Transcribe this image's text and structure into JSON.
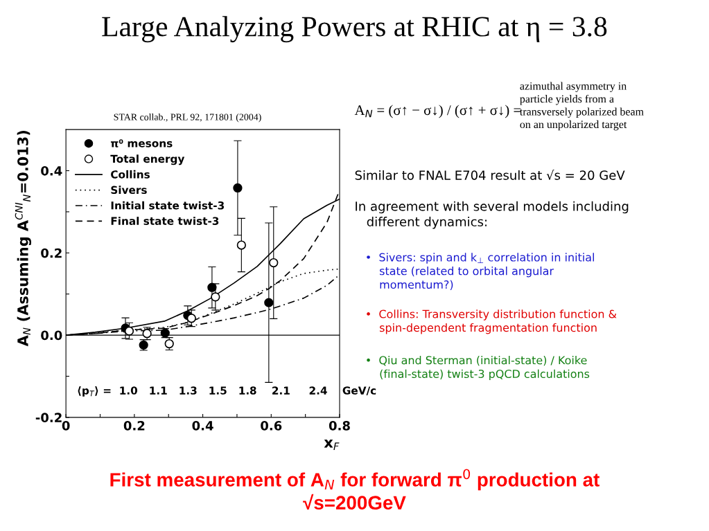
{
  "chart_data": {
    "type": "scatter",
    "title": "Large Analyzing Powers at RHIC at η = 3.8",
    "xlabel": "x$_{F}$",
    "ylabel": "A$_{N}$ (Assuming A$^{CNI}$$_{N}$=0.013)",
    "xlim": [
      0,
      0.8
    ],
    "ylim": [
      -0.2,
      0.5
    ],
    "xticks": [
      0,
      0.2,
      0.4,
      0.6,
      0.8,
      {
        "value": 0.1,
        "label": null
      },
      {
        "value": 0.3,
        "label": null
      },
      {
        "value": 0.5,
        "label": null
      },
      {
        "value": 0.7,
        "label": null
      }
    ],
    "yticks": [
      -0.2,
      {
        "value": 0,
        "label": "0.0"
      },
      0.2,
      0.4,
      {
        "value": -0.1,
        "label": null
      },
      {
        "value": 0.1,
        "label": null
      },
      {
        "value": 0.3,
        "label": null
      }
    ],
    "ref_lines": [
      {
        "axis": "y",
        "value": 0,
        "color": "#000000"
      }
    ],
    "legend": "top left",
    "grid": false,
    "series": [
      {
        "name": "π⁰ mesons",
        "marker": "circle",
        "color": "#000000",
        "x": [
          0.174,
          0.227,
          0.29,
          0.356,
          0.427,
          0.502,
          0.593
        ],
        "values": [
          0.017,
          -0.024,
          0.005,
          0.048,
          0.116,
          0.358,
          0.079
        ],
        "errors": [
          0.025,
          0.013,
          0.011,
          0.023,
          0.05,
          0.115,
          0.194
        ]
      },
      {
        "name": "Total energy",
        "marker": "circle",
        "color": "#000000",
        "x": [
          0.185,
          0.237,
          0.302,
          0.367,
          0.437,
          0.513,
          0.607
        ],
        "values": [
          0.01,
          0.004,
          -0.021,
          0.041,
          0.093,
          0.219,
          0.176
        ],
        "errors": [
          0.02,
          0.015,
          0.015,
          0.02,
          0.032,
          0.065,
          0.136
        ]
      },
      {
        "name": "Collins",
        "type": "line",
        "line_style": "solid",
        "color": "#000000",
        "x": [
          0,
          0.085,
          0.174,
          0.288,
          0.356,
          0.424,
          0.492,
          0.559,
          0.593,
          0.627,
          0.695,
          0.763,
          0.8
        ],
        "values": [
          0,
          0.007,
          0.017,
          0.034,
          0.059,
          0.09,
          0.127,
          0.167,
          0.195,
          0.223,
          0.283,
          0.316,
          0.331
        ]
      },
      {
        "name": "Sivers",
        "type": "line",
        "line_style": "dotted",
        "color": "#000000",
        "x": [
          0,
          0.085,
          0.174,
          0.288,
          0.356,
          0.424,
          0.492,
          0.559,
          0.593,
          0.627,
          0.695,
          0.763,
          0.8
        ],
        "values": [
          0,
          0.005,
          0.012,
          0.019,
          0.031,
          0.053,
          0.076,
          0.102,
          0.116,
          0.13,
          0.15,
          0.158,
          0.161
        ]
      },
      {
        "name": "Initial state twist-3",
        "type": "line",
        "line_style": "dashdot",
        "color": "#000000",
        "x": [
          0,
          0.085,
          0.174,
          0.288,
          0.356,
          0.424,
          0.492,
          0.559,
          0.593,
          0.627,
          0.695,
          0.763,
          0.8
        ],
        "values": [
          0,
          0.004,
          0.01,
          0.012,
          0.021,
          0.031,
          0.042,
          0.055,
          0.062,
          0.071,
          0.09,
          0.121,
          0.147
        ]
      },
      {
        "name": "Final state twist-3",
        "type": "line",
        "line_style": "dashed",
        "color": "#000000",
        "x": [
          0,
          0.085,
          0.174,
          0.288,
          0.356,
          0.424,
          0.492,
          0.559,
          0.593,
          0.627,
          0.695,
          0.763,
          0.8
        ],
        "values": [
          0,
          0.004,
          0.012,
          0.017,
          0.031,
          0.051,
          0.072,
          0.096,
          0.113,
          0.133,
          0.186,
          0.274,
          0.353
        ]
      }
    ],
    "annotations": [
      "STAR collab., PRL 92, 171801 (2004)",
      "A$_{N}$ = (σ↑ − σ↓) / (σ↑ + σ↓) =",
      "azimuthal asymmetry in\nparticle yields from a\ntransversely polarized beam\non an unpolarized target",
      "Similar to FNAL E704 result at √s = 20 GeV",
      "In agreement with several models including\n   different dynamics:",
      "•  Sivers: spin and k$_{⊥}$ correlation in initial\n    state (related to orbital angular\n    momentum?)",
      "•  Collins: Transversity distribution function &\n    spin-dependent fragmentation function",
      "•  Qiu and Sterman (initial-state) / Koike\n    (final-state) twist-3 pQCD calculations",
      "⟨p$_{T}$⟩ =  1.0   1.1   1.3   1.5   1.8    2.1     2.4    GeV/c",
      "First measurement of A$_{N}$ for forward π$^{0}$ production at\n√s=200GeV"
    ]
  }
}
